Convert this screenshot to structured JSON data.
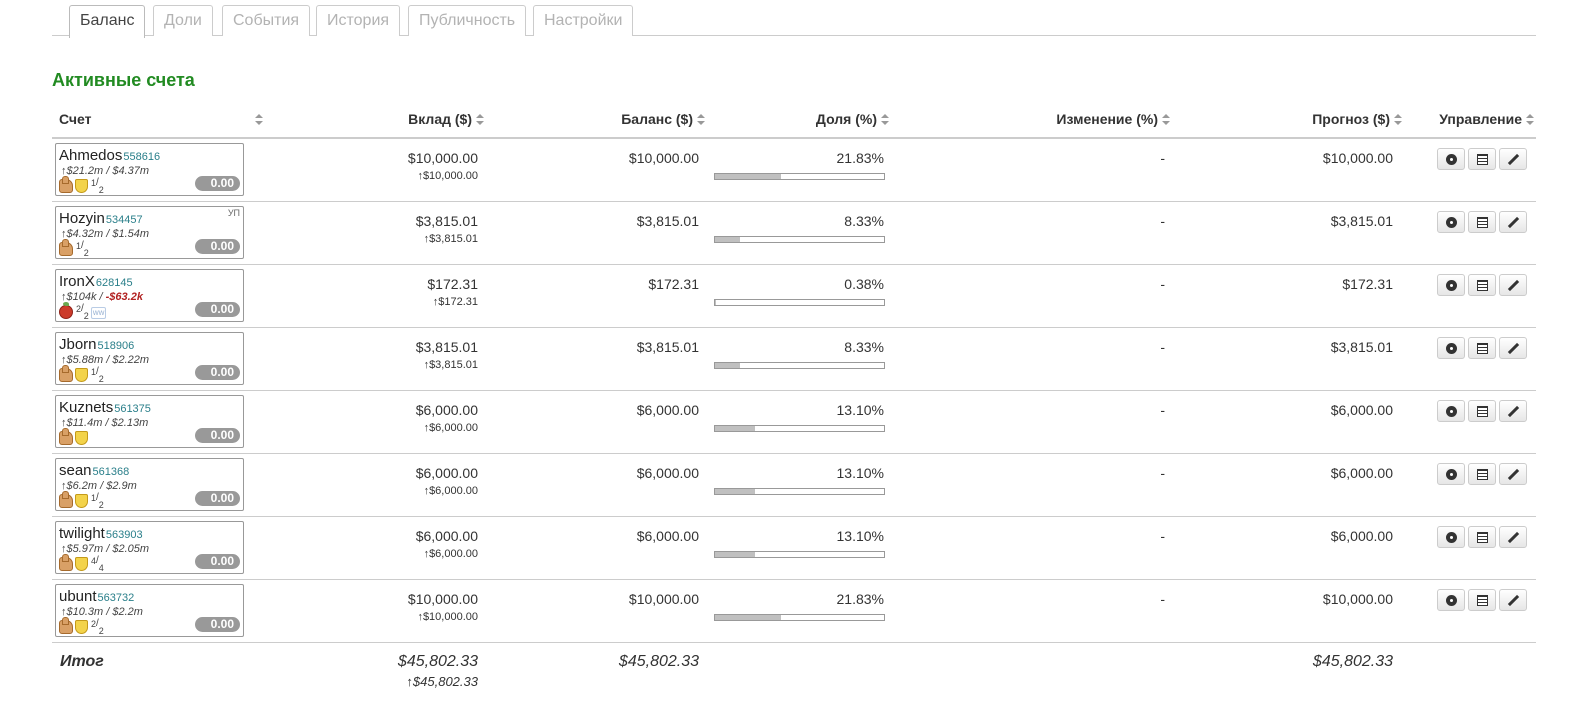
{
  "tabs": [
    {
      "label": "Баланс",
      "active": true
    },
    {
      "label": "Доли",
      "active": false
    },
    {
      "label": "События",
      "active": false
    },
    {
      "label": "История",
      "active": false
    },
    {
      "label": "Публичность",
      "active": false
    },
    {
      "label": "Настройки",
      "active": false
    }
  ],
  "section_title": "Активные счета",
  "columns": {
    "account": "Счет",
    "deposit": "Вклад ($)",
    "balance": "Баланс ($)",
    "share": "Доля (%)",
    "change": "Изменение (%)",
    "forecast": "Прогноз ($)",
    "manage": "Управление"
  },
  "icons": {
    "sort": "sort-icon",
    "settings": "gear-icon",
    "table": "list-icon",
    "edit": "pencil-icon",
    "rating": "thumb-up-icon",
    "verified": "shield-icon",
    "warning": "apple-icon"
  },
  "colors": {
    "section_title": "#228b22",
    "account_id": "#2a7f8a",
    "negative": "#b22222",
    "score_badge": "#999999",
    "share_bar_fill": "#c0c0c0"
  },
  "rows": [
    {
      "name": "Ahmedos",
      "id": "558616",
      "tag": "",
      "stats_a": "↑$21.2m / ",
      "stats_b": "$4.37m",
      "stats_b_negative": false,
      "icons": [
        "thumb",
        "shield"
      ],
      "frac_num": "1",
      "frac_den": "2",
      "extra": "",
      "score": "0.00",
      "deposit": "$10,000.00",
      "deposit_sub": "↑$10,000.00",
      "balance": "$10,000.00",
      "share": "21.83%",
      "share_fraction": 0.2183,
      "change": "-",
      "forecast": "$10,000.00"
    },
    {
      "name": "Hozyin",
      "id": "534457",
      "tag": "УП",
      "stats_a": "↑$4.32m / ",
      "stats_b": "$1.54m",
      "stats_b_negative": false,
      "icons": [
        "thumb"
      ],
      "frac_num": "1",
      "frac_den": "2",
      "extra": "",
      "score": "0.00",
      "deposit": "$3,815.01",
      "deposit_sub": "↑$3,815.01",
      "balance": "$3,815.01",
      "share": "8.33%",
      "share_fraction": 0.0833,
      "change": "-",
      "forecast": "$3,815.01"
    },
    {
      "name": "IronX",
      "id": "628145",
      "tag": "",
      "stats_a": "↑$104k / ",
      "stats_b": "-$63.2k",
      "stats_b_negative": true,
      "icons": [
        "apple"
      ],
      "frac_num": "2",
      "frac_den": "2",
      "extra": "ww",
      "score": "0.00",
      "deposit": "$172.31",
      "deposit_sub": "↑$172.31",
      "balance": "$172.31",
      "share": "0.38%",
      "share_fraction": 0.0038,
      "change": "-",
      "forecast": "$172.31"
    },
    {
      "name": "Jborn",
      "id": "518906",
      "tag": "",
      "stats_a": "↑$5.88m / ",
      "stats_b": "$2.22m",
      "stats_b_negative": false,
      "icons": [
        "thumb",
        "shield"
      ],
      "frac_num": "1",
      "frac_den": "2",
      "extra": "",
      "score": "0.00",
      "deposit": "$3,815.01",
      "deposit_sub": "↑$3,815.01",
      "balance": "$3,815.01",
      "share": "8.33%",
      "share_fraction": 0.0833,
      "change": "-",
      "forecast": "$3,815.01"
    },
    {
      "name": "Kuznets",
      "id": "561375",
      "tag": "",
      "stats_a": "↑$11.4m / ",
      "stats_b": "$2.13m",
      "stats_b_negative": false,
      "icons": [
        "thumb",
        "shield"
      ],
      "frac_num": "",
      "frac_den": "",
      "extra": "",
      "score": "0.00",
      "deposit": "$6,000.00",
      "deposit_sub": "↑$6,000.00",
      "balance": "$6,000.00",
      "share": "13.10%",
      "share_fraction": 0.131,
      "change": "-",
      "forecast": "$6,000.00"
    },
    {
      "name": "sean",
      "id": "561368",
      "tag": "",
      "stats_a": "↑$6.2m / ",
      "stats_b": "$2.9m",
      "stats_b_negative": false,
      "icons": [
        "thumb",
        "shield"
      ],
      "frac_num": "1",
      "frac_den": "2",
      "extra": "",
      "score": "0.00",
      "deposit": "$6,000.00",
      "deposit_sub": "↑$6,000.00",
      "balance": "$6,000.00",
      "share": "13.10%",
      "share_fraction": 0.131,
      "change": "-",
      "forecast": "$6,000.00"
    },
    {
      "name": "twilight",
      "id": "563903",
      "tag": "",
      "stats_a": "↑$5.97m / ",
      "stats_b": "$2.05m",
      "stats_b_negative": false,
      "icons": [
        "thumb",
        "shield"
      ],
      "frac_num": "4",
      "frac_den": "4",
      "extra": "",
      "score": "0.00",
      "deposit": "$6,000.00",
      "deposit_sub": "↑$6,000.00",
      "balance": "$6,000.00",
      "share": "13.10%",
      "share_fraction": 0.131,
      "change": "-",
      "forecast": "$6,000.00"
    },
    {
      "name": "ubunt",
      "id": "563732",
      "tag": "",
      "stats_a": "↑$10.3m / ",
      "stats_b": "$2.2m",
      "stats_b_negative": false,
      "icons": [
        "thumb",
        "shield"
      ],
      "frac_num": "2",
      "frac_den": "2",
      "extra": "",
      "score": "0.00",
      "deposit": "$10,000.00",
      "deposit_sub": "↑$10,000.00",
      "balance": "$10,000.00",
      "share": "21.83%",
      "share_fraction": 0.2183,
      "change": "-",
      "forecast": "$10,000.00"
    }
  ],
  "total": {
    "label": "Итог",
    "deposit": "$45,802.33",
    "deposit_sub": "↑$45,802.33",
    "balance": "$45,802.33",
    "forecast": "$45,802.33"
  }
}
